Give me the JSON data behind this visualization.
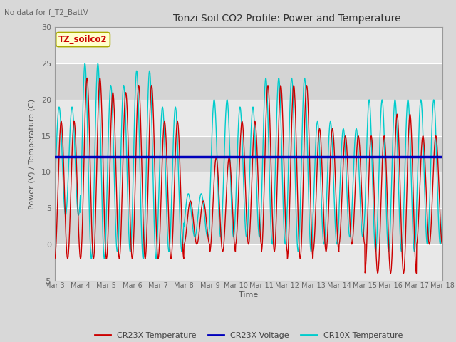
{
  "title": "Tonzi Soil CO2 Profile: Power and Temperature",
  "top_left_text": "No data for f_T2_BattV",
  "ylabel": "Power (V) / Temperature (C)",
  "xlabel": "Time",
  "ylim": [
    -5,
    30
  ],
  "xlim": [
    0,
    15
  ],
  "background_color": "#d8d8d8",
  "plot_bg_color": "#d8d8d8",
  "grid_color": "#ffffff",
  "voltage_line_value": 12.1,
  "xtick_labels": [
    "Mar 3",
    "Mar 4",
    "Mar 5",
    "Mar 6",
    "Mar 7",
    "Mar 8",
    "Mar 9",
    "Mar 10",
    "Mar 11",
    "Mar 12",
    "Mar 13",
    "Mar 14",
    "Mar 15",
    "Mar 16",
    "Mar 17",
    "Mar 18"
  ],
  "box_label": "TZ_soilco2",
  "box_color": "#ffffcc",
  "box_edge_color": "#aaaa00",
  "cr23x_color": "#cc0000",
  "cr10x_color": "#00cccc",
  "voltage_color": "#0000bb",
  "legend_labels": [
    "CR23X Temperature",
    "CR23X Voltage",
    "CR10X Temperature"
  ],
  "band_colors": [
    "#e8e8e8",
    "#d0d0d0"
  ]
}
